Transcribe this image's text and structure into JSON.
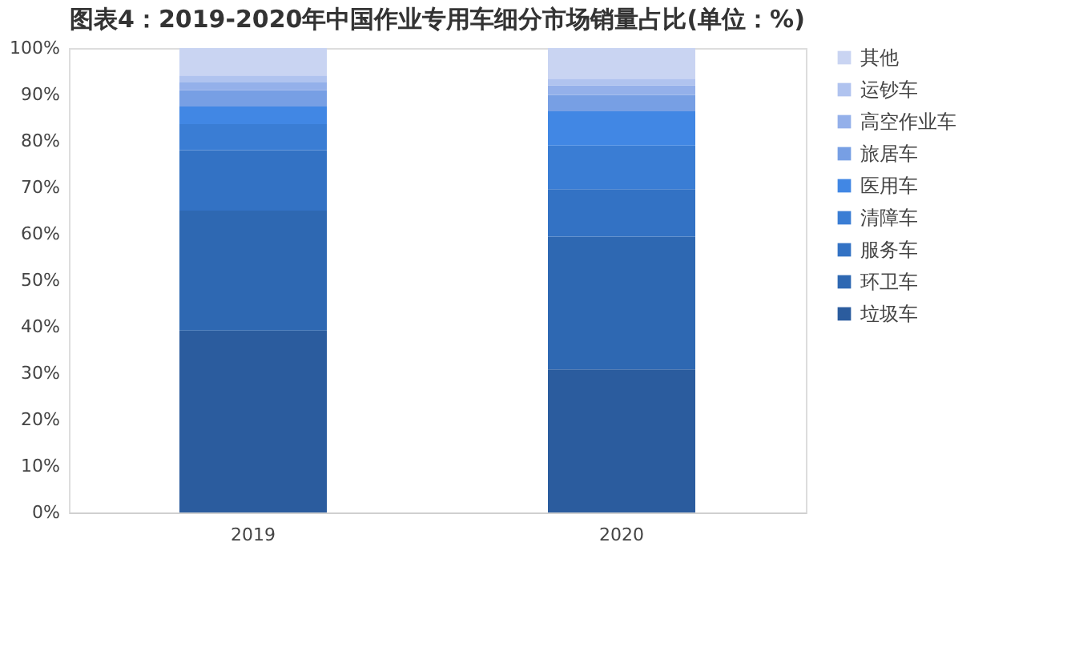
{
  "chart_data": {
    "type": "bar",
    "stacked": true,
    "title": "图表4：2019-2020年中国作业专用车细分市场销量占比(单位：%)",
    "categories": [
      "2019",
      "2020"
    ],
    "series": [
      {
        "name": "垃圾车",
        "color": "#2b5c9e",
        "values": [
          39.2,
          30.8
        ]
      },
      {
        "name": "环卫车",
        "color": "#2e68b2",
        "values": [
          25.8,
          28.6
        ]
      },
      {
        "name": "服务车",
        "color": "#3372c4",
        "values": [
          13.0,
          10.2
        ]
      },
      {
        "name": "清障车",
        "color": "#3a7dd4",
        "values": [
          5.6,
          9.4
        ]
      },
      {
        "name": "医用车",
        "color": "#4187e4",
        "values": [
          3.8,
          7.4
        ]
      },
      {
        "name": "旅居车",
        "color": "#779fe4",
        "values": [
          3.5,
          3.5
        ]
      },
      {
        "name": "高空作业车",
        "color": "#94b0ea",
        "values": [
          1.8,
          2.1
        ]
      },
      {
        "name": "运钞车",
        "color": "#b0c3ef",
        "values": [
          1.4,
          1.4
        ]
      },
      {
        "name": "其他",
        "color": "#c9d4f2",
        "values": [
          5.9,
          6.6
        ]
      }
    ],
    "ylim": [
      0,
      100
    ],
    "yticks": [
      {
        "value": 0,
        "label": "0%"
      },
      {
        "value": 10,
        "label": "10%"
      },
      {
        "value": 20,
        "label": "20%"
      },
      {
        "value": 30,
        "label": "30%"
      },
      {
        "value": 40,
        "label": "40%"
      },
      {
        "value": 50,
        "label": "50%"
      },
      {
        "value": 60,
        "label": "60%"
      },
      {
        "value": 70,
        "label": "70%"
      },
      {
        "value": 80,
        "label": "80%"
      },
      {
        "value": 90,
        "label": "90%"
      },
      {
        "value": 100,
        "label": "100%"
      }
    ],
    "grid": false,
    "legend": "right"
  }
}
